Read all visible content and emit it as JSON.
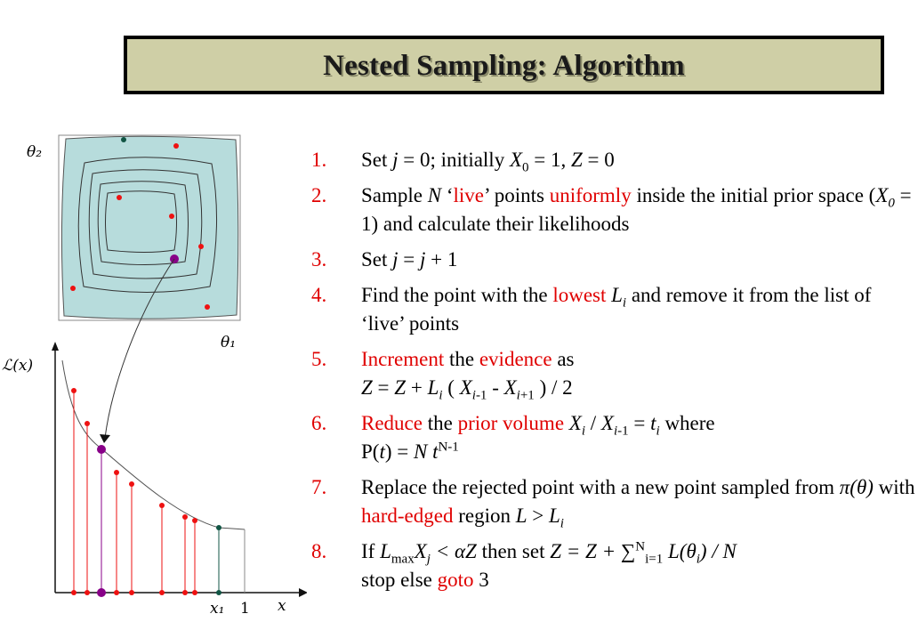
{
  "slide": {
    "title": "Nested Sampling: Algorithm"
  },
  "diagram": {
    "theta2_label": "θ₂",
    "theta1_label": "θ₁",
    "likelihood_label": "ℒ(x)",
    "x1_label": "x₁",
    "one_label": "1",
    "x_label": "x",
    "colors": {
      "region": "#b7dcdc",
      "point": "#ee1111",
      "current": "#880088",
      "rejected": "#115544"
    }
  },
  "steps": [
    {
      "num": "1.",
      "parts": [
        [
          "Set ",
          ""
        ],
        [
          "j",
          "i"
        ],
        [
          " = 0; initially ",
          ""
        ],
        [
          "X",
          "i"
        ],
        [
          "0",
          "sub"
        ],
        [
          " = 1, ",
          ""
        ],
        [
          "Z",
          "i"
        ],
        [
          " = 0",
          ""
        ]
      ]
    },
    {
      "num": "2.",
      "parts": [
        [
          "Sample ",
          ""
        ],
        [
          "N",
          "i"
        ],
        [
          " ‘",
          ""
        ],
        [
          "live",
          "red"
        ],
        [
          "’ points ",
          ""
        ],
        [
          "uniformly",
          "red"
        ],
        [
          " inside the initial prior space (",
          ""
        ],
        [
          "X",
          "i"
        ],
        [
          "0",
          "subi"
        ],
        [
          " = 1) and calculate their likelihoods",
          ""
        ]
      ]
    },
    {
      "num": "3.",
      "parts": [
        [
          "Set  ",
          ""
        ],
        [
          "j",
          "i"
        ],
        [
          " = ",
          ""
        ],
        [
          "j",
          "i"
        ],
        [
          " + 1",
          ""
        ]
      ]
    },
    {
      "num": "4.",
      "parts": [
        [
          "Find the point with the ",
          ""
        ],
        [
          "lowest",
          "red"
        ],
        [
          " ",
          ""
        ],
        [
          "L",
          "i"
        ],
        [
          "i",
          "subi"
        ],
        [
          " and remove it from the list of ‘live’ points",
          ""
        ]
      ]
    },
    {
      "num": "5.",
      "parts": [
        [
          "Increment",
          "red"
        ],
        [
          " the ",
          ""
        ],
        [
          "evidence",
          "red"
        ],
        [
          " as",
          ""
        ],
        [
          "",
          "br"
        ],
        [
          "Z",
          "i"
        ],
        [
          " = ",
          ""
        ],
        [
          "Z",
          "i"
        ],
        [
          " + ",
          ""
        ],
        [
          "L",
          "i"
        ],
        [
          "i",
          "subi"
        ],
        [
          " ( ",
          ""
        ],
        [
          "X",
          "i"
        ],
        [
          "i",
          "subi"
        ],
        [
          "-1",
          "sub"
        ],
        [
          " - ",
          ""
        ],
        [
          "X",
          "i"
        ],
        [
          "i",
          "subi"
        ],
        [
          "+1",
          "sub"
        ],
        [
          " ) / 2",
          ""
        ]
      ]
    },
    {
      "num": "6.",
      "parts": [
        [
          "Reduce",
          "red"
        ],
        [
          " the ",
          ""
        ],
        [
          "prior volume",
          "red"
        ],
        [
          " ",
          ""
        ],
        [
          "X",
          "i"
        ],
        [
          "i",
          "subi"
        ],
        [
          " / ",
          ""
        ],
        [
          "X",
          "i"
        ],
        [
          "i",
          "subi"
        ],
        [
          "-1",
          "sub"
        ],
        [
          " = ",
          ""
        ],
        [
          "t",
          "i"
        ],
        [
          "i",
          "subi"
        ],
        [
          " where",
          ""
        ],
        [
          "",
          "br"
        ],
        [
          "P(",
          ""
        ],
        [
          "t",
          "i"
        ],
        [
          ") = ",
          ""
        ],
        [
          "N",
          "i"
        ],
        [
          " ",
          ""
        ],
        [
          "t",
          "i"
        ],
        [
          "N-1",
          "sup"
        ]
      ]
    },
    {
      "num": "7.",
      "parts": [
        [
          "Replace the rejected point with a new point sampled from ",
          ""
        ],
        [
          "π(θ)",
          "i"
        ],
        [
          "  with ",
          ""
        ],
        [
          "hard-edged",
          "red"
        ],
        [
          " region ",
          ""
        ],
        [
          "L",
          "i"
        ],
        [
          " > ",
          ""
        ],
        [
          "L",
          "i"
        ],
        [
          "i",
          "subi"
        ]
      ]
    },
    {
      "num": "8.",
      "parts": [
        [
          "If  ",
          ""
        ],
        [
          "L",
          "i"
        ],
        [
          "max",
          "sub"
        ],
        [
          "X",
          "i"
        ],
        [
          "j",
          "subi"
        ],
        [
          " < αZ",
          "i"
        ],
        [
          "  then set  ",
          ""
        ],
        [
          "Z = Z + ∑",
          "i"
        ],
        [
          "N",
          "sup"
        ],
        [
          "i=1",
          "sub"
        ],
        [
          " L(θ",
          "i"
        ],
        [
          "i",
          "subi"
        ],
        [
          ") / N",
          "i"
        ],
        [
          "",
          "br"
        ],
        [
          "stop else ",
          ""
        ],
        [
          "goto",
          "red"
        ],
        [
          " 3",
          ""
        ]
      ]
    }
  ]
}
